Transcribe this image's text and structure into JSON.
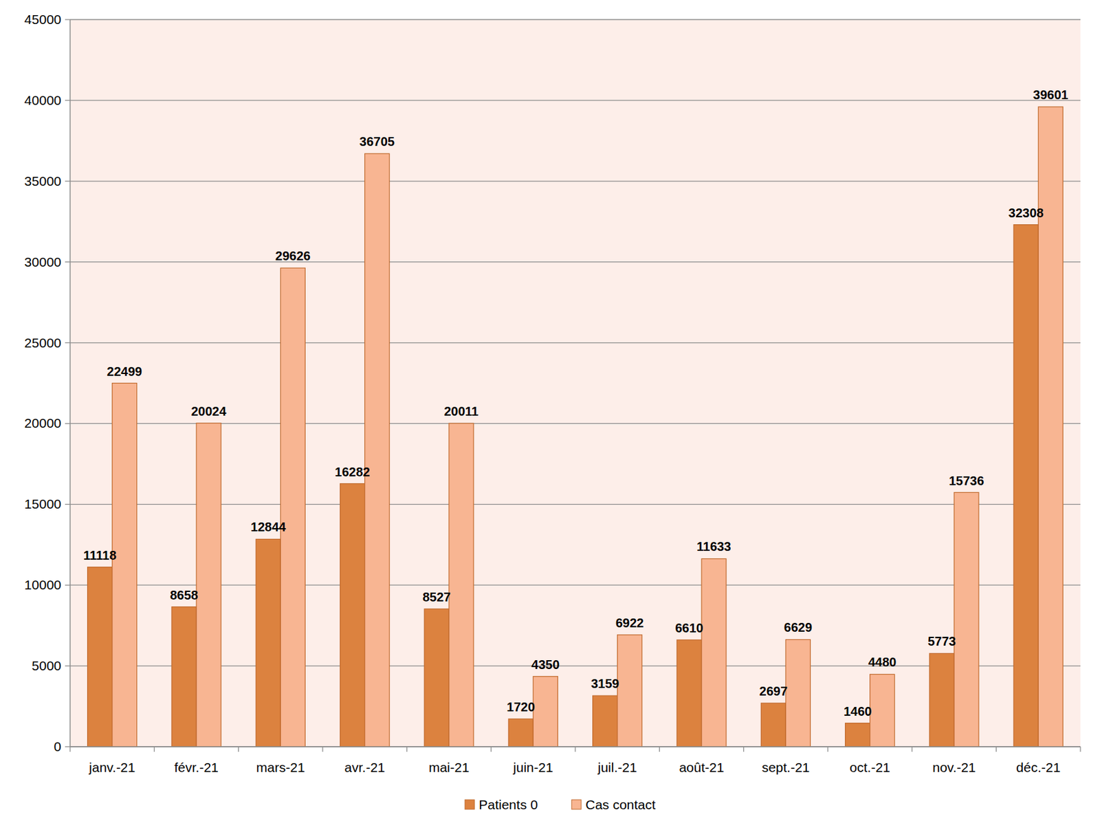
{
  "chart_data": {
    "type": "bar",
    "categories": [
      "janv.-21",
      "févr.-21",
      "mars-21",
      "avr.-21",
      "mai-21",
      "juin-21",
      "juil.-21",
      "août-21",
      "sept.-21",
      "oct.-21",
      "nov.-21",
      "déc.-21"
    ],
    "series": [
      {
        "name": "Patients 0",
        "color": "#dc823f",
        "values": [
          11118,
          8658,
          12844,
          16282,
          8527,
          1720,
          3159,
          6610,
          2697,
          1460,
          5773,
          32308
        ]
      },
      {
        "name": "Cas contact",
        "color": "#f8b592",
        "values": [
          22499,
          20024,
          29626,
          36705,
          20011,
          4350,
          6922,
          11633,
          6629,
          4480,
          15736,
          39601
        ]
      }
    ],
    "ylim": [
      0,
      45000
    ],
    "yticks": [
      0,
      5000,
      10000,
      15000,
      20000,
      25000,
      30000,
      35000,
      40000,
      45000
    ],
    "grid": true,
    "legend": "bottom",
    "data_labels": true
  }
}
